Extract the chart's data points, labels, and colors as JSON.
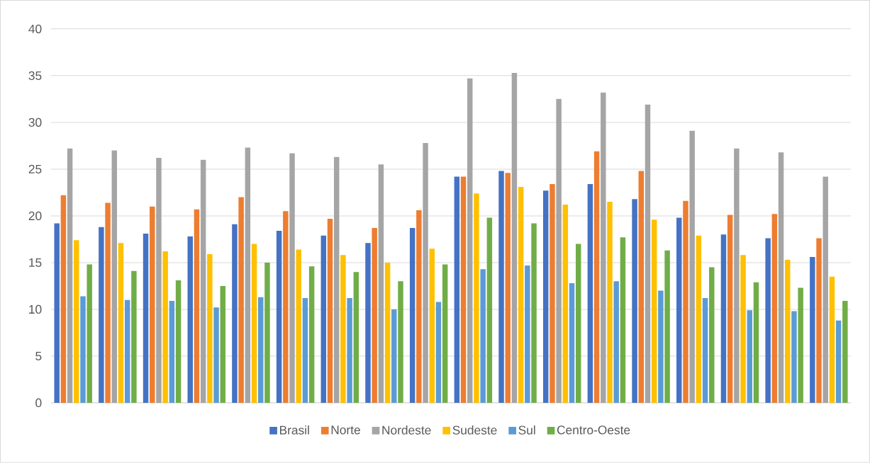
{
  "chart_data": {
    "type": "bar",
    "categories": [
      null,
      null,
      null,
      null,
      null,
      null,
      null,
      null,
      null,
      null,
      null,
      null,
      null,
      null,
      null,
      null,
      null,
      null
    ],
    "series": [
      {
        "name": "Brasil",
        "color": "#4472c4",
        "values": [
          19.2,
          18.8,
          18.1,
          17.8,
          19.1,
          18.4,
          17.9,
          17.1,
          18.7,
          24.2,
          24.8,
          22.7,
          23.4,
          21.8,
          19.8,
          18.0,
          17.6,
          15.6
        ]
      },
      {
        "name": "Norte",
        "color": "#ed7d31",
        "values": [
          22.2,
          21.4,
          21.0,
          20.7,
          22.0,
          20.5,
          19.7,
          18.7,
          20.6,
          24.2,
          24.6,
          23.4,
          26.9,
          24.8,
          21.6,
          20.1,
          20.2,
          17.6
        ]
      },
      {
        "name": "Nordeste",
        "color": "#a5a5a5",
        "values": [
          27.2,
          27.0,
          26.2,
          26.0,
          27.3,
          26.7,
          26.3,
          25.5,
          27.8,
          34.7,
          35.3,
          32.5,
          33.2,
          31.9,
          29.1,
          27.2,
          26.8,
          24.2
        ]
      },
      {
        "name": "Sudeste",
        "color": "#ffc000",
        "values": [
          17.4,
          17.1,
          16.2,
          15.9,
          17.0,
          16.4,
          15.8,
          15.0,
          16.5,
          22.4,
          23.1,
          21.2,
          21.5,
          19.6,
          17.9,
          15.8,
          15.3,
          13.5
        ]
      },
      {
        "name": "Sul",
        "color": "#5b9bd5",
        "values": [
          11.4,
          11.0,
          10.9,
          10.2,
          11.3,
          11.2,
          11.2,
          10.0,
          10.8,
          14.3,
          14.7,
          12.8,
          13.0,
          12.0,
          11.2,
          9.9,
          9.8,
          8.8
        ]
      },
      {
        "name": "Centro-Oeste",
        "color": "#70ad47",
        "values": [
          14.8,
          14.1,
          13.1,
          12.5,
          15.0,
          14.6,
          14.0,
          13.0,
          14.8,
          19.8,
          19.2,
          17.0,
          17.7,
          16.3,
          14.5,
          12.9,
          12.3,
          10.9
        ]
      }
    ],
    "ylim": [
      0,
      40
    ],
    "yticks": [
      0,
      5,
      10,
      15,
      20,
      25,
      30,
      35,
      40
    ],
    "grid": "y",
    "legend": "bottom"
  }
}
